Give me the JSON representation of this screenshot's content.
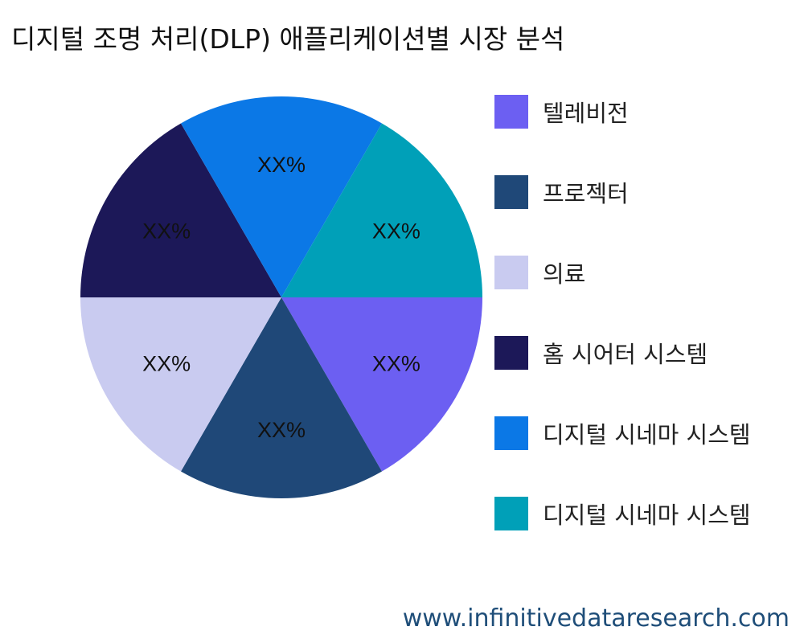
{
  "title": "디지털 조명 처리(DLP) 애플리케이션별 시장 분석",
  "footer": "www.infinitivedataresearch.com",
  "chart_data": {
    "type": "pie",
    "title": "디지털 조명 처리(DLP) 애플리케이션별 시장 분석",
    "categories": [
      "텔레비전",
      "프로젝터",
      "의료",
      "홈 시어터 시스템",
      "디지털 시네마 시스템",
      "디지털 시네마 시스템"
    ],
    "values": [
      16.67,
      16.67,
      16.67,
      16.67,
      16.67,
      16.67
    ],
    "data_labels": [
      "XX%",
      "XX%",
      "XX%",
      "XX%",
      "XX%",
      "XX%"
    ],
    "colors": [
      "#6c5ff2",
      "#1f4878",
      "#c9cbf0",
      "#1c1858",
      "#0b78e6",
      "#00a0b8"
    ],
    "legend_position": "right"
  }
}
